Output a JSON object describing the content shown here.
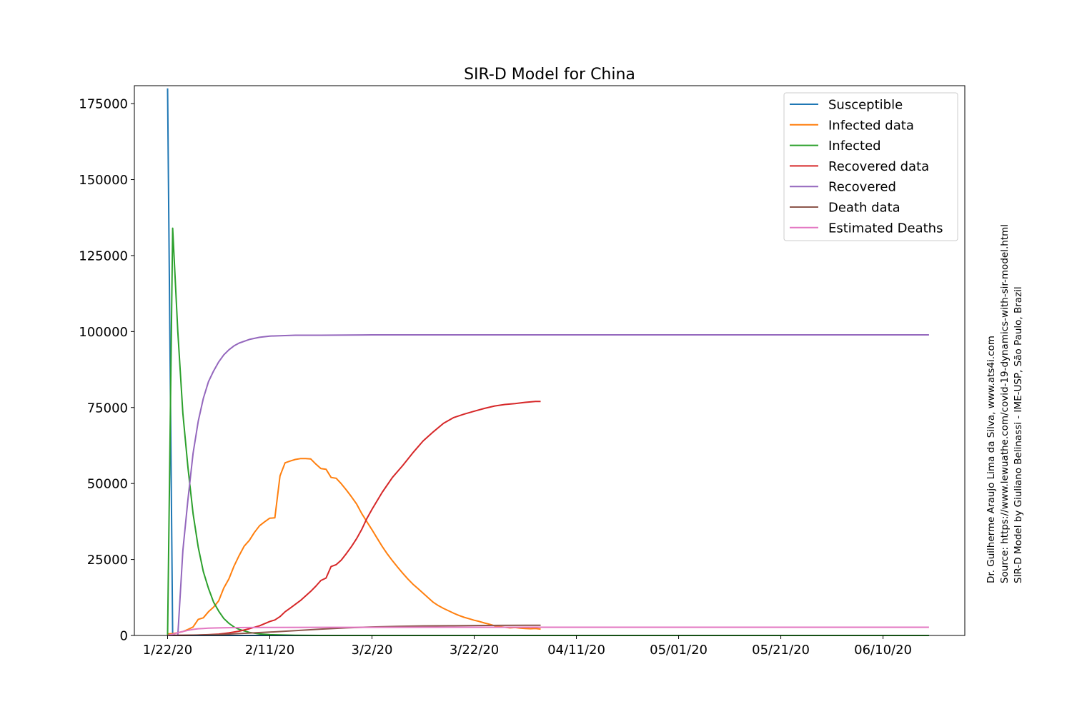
{
  "chart_data": {
    "type": "line",
    "title": "SIR-D Model for China",
    "xlabel": "",
    "ylabel": "",
    "x_tick_labels": [
      "1/22/20",
      "2/11/20",
      "3/2/20",
      "3/22/20",
      "04/11/20",
      "05/01/20",
      "05/21/20",
      "06/10/20"
    ],
    "x_tick_days": [
      0,
      20,
      40,
      60,
      80,
      100,
      120,
      140
    ],
    "y_ticks": [
      0,
      25000,
      50000,
      75000,
      100000,
      125000,
      150000,
      175000
    ],
    "xlim_days": [
      -6.5,
      156
    ],
    "ylim": [
      0,
      180900
    ],
    "x_unit": "days since 1/22/20",
    "grid": false,
    "legend_position": "top-right",
    "series": [
      {
        "name": "Susceptible",
        "color": "#1f77b4",
        "x": [
          0,
          1,
          30,
          149
        ],
        "y": [
          180000,
          0,
          0,
          0
        ]
      },
      {
        "name": "Infected data",
        "color": "#ff7f0e",
        "x": [
          0,
          1,
          2,
          3,
          4,
          5,
          6,
          7,
          8,
          9,
          10,
          11,
          12,
          13,
          14,
          15,
          16,
          17,
          18,
          19,
          20,
          21,
          22,
          23,
          24,
          25,
          26,
          27,
          28,
          29,
          30,
          31,
          32,
          33,
          34,
          35,
          36,
          37,
          38,
          39,
          40,
          41,
          42,
          43,
          44,
          45,
          46,
          47,
          48,
          49,
          50,
          51,
          52,
          53,
          54,
          55,
          56,
          57,
          58,
          59,
          60,
          61,
          62,
          63,
          64,
          65,
          66,
          67,
          68,
          69,
          70,
          71,
          72,
          73
        ],
        "y": [
          500,
          600,
          900,
          1300,
          2000,
          2800,
          5300,
          5800,
          7800,
          9300,
          11400,
          15600,
          18600,
          22800,
          26300,
          29400,
          31300,
          33900,
          36100,
          37400,
          38600,
          38700,
          52500,
          56800,
          57400,
          57900,
          58200,
          58200,
          58100,
          56400,
          54900,
          54700,
          52000,
          51700,
          49900,
          47800,
          45600,
          43200,
          40100,
          37400,
          34800,
          32000,
          29300,
          26800,
          24600,
          22500,
          20500,
          18600,
          16900,
          15400,
          13900,
          12400,
          10900,
          9800,
          8900,
          8100,
          7300,
          6600,
          6000,
          5500,
          5000,
          4600,
          4100,
          3700,
          3200,
          2900,
          2700,
          2500,
          2600,
          2400,
          2300,
          2200,
          2300,
          2100
        ]
      },
      {
        "name": "Infected",
        "color": "#2ca02c",
        "x": [
          0,
          1,
          2,
          3,
          4,
          5,
          6,
          7,
          8,
          9,
          10,
          11,
          12,
          13,
          14,
          16,
          18,
          20,
          25,
          30,
          40,
          50,
          60,
          80,
          100,
          149
        ],
        "y": [
          0,
          134000,
          100000,
          73000,
          55000,
          40000,
          29000,
          21000,
          15500,
          11000,
          8000,
          5600,
          4000,
          2800,
          2000,
          1000,
          500,
          250,
          60,
          10,
          0,
          0,
          0,
          0,
          0,
          0
        ]
      },
      {
        "name": "Recovered data",
        "color": "#d62728",
        "x": [
          0,
          2,
          4,
          6,
          8,
          10,
          12,
          14,
          16,
          18,
          20,
          21,
          22,
          23,
          24,
          26,
          28,
          29,
          30,
          31,
          32,
          33,
          34,
          35,
          36,
          37,
          38,
          39,
          40,
          42,
          44,
          46,
          48,
          50,
          52,
          54,
          56,
          58,
          60,
          62,
          64,
          66,
          68,
          70,
          72,
          73
        ],
        "y": [
          30,
          50,
          100,
          150,
          250,
          450,
          850,
          1400,
          2200,
          3200,
          4600,
          5100,
          6200,
          7800,
          9000,
          11500,
          14500,
          16200,
          18100,
          18900,
          22700,
          23300,
          24800,
          27000,
          29300,
          31900,
          34900,
          38500,
          41500,
          47100,
          52000,
          55900,
          60100,
          64000,
          67000,
          69800,
          71700,
          72800,
          73800,
          74700,
          75500,
          76000,
          76300,
          76700,
          77000,
          77000
        ]
      },
      {
        "name": "Recovered",
        "color": "#9467bd",
        "x": [
          0,
          1,
          2,
          3,
          4,
          5,
          6,
          7,
          8,
          9,
          10,
          11,
          12,
          13,
          14,
          16,
          18,
          20,
          25,
          30,
          40,
          60,
          100,
          149
        ],
        "y": [
          0,
          0,
          0,
          28000,
          45000,
          60000,
          70500,
          78000,
          83500,
          87000,
          90000,
          92300,
          94000,
          95300,
          96200,
          97400,
          98100,
          98500,
          98800,
          98800,
          98900,
          98900,
          98900,
          98900
        ]
      },
      {
        "name": "Death data",
        "color": "#8c564b",
        "x": [
          0,
          5,
          10,
          15,
          20,
          25,
          30,
          35,
          40,
          45,
          50,
          55,
          60,
          65,
          70,
          73
        ],
        "y": [
          17,
          100,
          300,
          700,
          1100,
          1600,
          2100,
          2500,
          2800,
          3000,
          3150,
          3200,
          3270,
          3310,
          3330,
          3340
        ]
      },
      {
        "name": "Estimated Deaths",
        "color": "#e377c2",
        "x": [
          0,
          1,
          2,
          3,
          4,
          5,
          6,
          7,
          8,
          10,
          12,
          15,
          20,
          30,
          60,
          100,
          149
        ],
        "y": [
          0,
          400,
          900,
          1300,
          1700,
          2000,
          2200,
          2300,
          2400,
          2500,
          2550,
          2600,
          2650,
          2680,
          2700,
          2700,
          2700
        ]
      }
    ]
  },
  "credits": {
    "line1": "Dr. Guilherme Araujo Lima da Silva, www.ats4i.com",
    "line2": "Source: https://www.lewuathe.com/covid-19-dynamics-with-sir-model.html",
    "line3": "SIR-D Model by Giuliano Belinassi - IME-USP, São Paulo, Brazil"
  }
}
